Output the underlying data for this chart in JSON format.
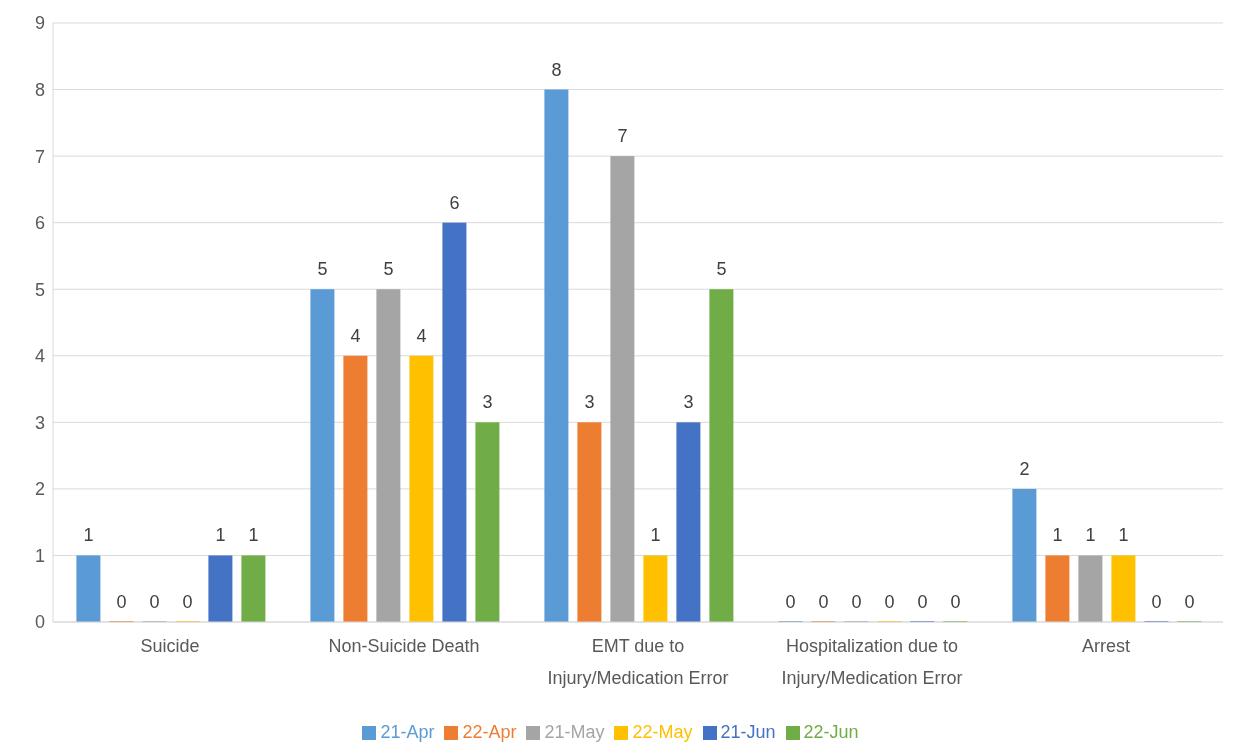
{
  "chart_data": {
    "type": "bar",
    "categories": [
      "Suicide",
      "Non-Suicide Death",
      "EMT due to Injury/Medication Error",
      "Hospitalization due to Injury/Medication Error",
      "Arrest"
    ],
    "series": [
      {
        "name": "21-Apr",
        "color": "#5b9bd5",
        "values": [
          1,
          5,
          8,
          0,
          2
        ]
      },
      {
        "name": "22-Apr",
        "color": "#ed7d31",
        "values": [
          0,
          4,
          3,
          0,
          1
        ]
      },
      {
        "name": "21-May",
        "color": "#a5a5a5",
        "values": [
          0,
          5,
          7,
          0,
          1
        ]
      },
      {
        "name": "22-May",
        "color": "#ffc000",
        "values": [
          0,
          4,
          1,
          0,
          1
        ]
      },
      {
        "name": "21-Jun",
        "color": "#4472c4",
        "values": [
          1,
          6,
          3,
          0,
          0
        ]
      },
      {
        "name": "22-Jun",
        "color": "#70ad47",
        "values": [
          1,
          3,
          5,
          0,
          0
        ]
      }
    ],
    "ylim": [
      0,
      9
    ],
    "yticks": [
      0,
      1,
      2,
      3,
      4,
      5,
      6,
      7,
      8,
      9
    ],
    "grid": "y",
    "legend": "bottom",
    "data_labels": true
  }
}
